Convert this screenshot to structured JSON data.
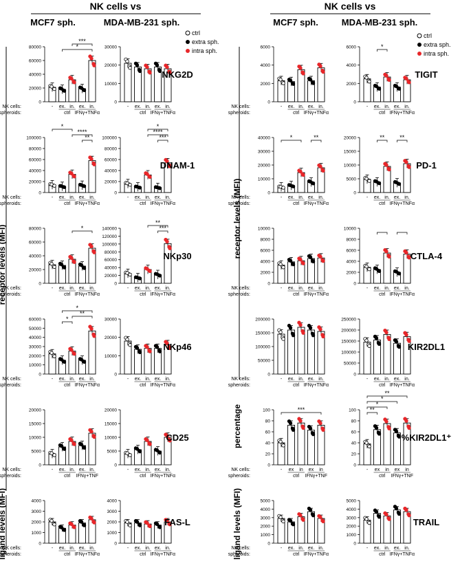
{
  "header": {
    "left_title": "NK cells vs",
    "right_title": "NK cells vs",
    "left_col1": "MCF7 sph.",
    "left_col2": "MDA-MB-231 sph.",
    "right_col1": "MCF7 sph.",
    "right_col2": "MDA-MB-231 sph."
  },
  "legend": {
    "ctrl": "ctrl",
    "extra": "extra sph.",
    "intra": "intra sph."
  },
  "axis_titles": {
    "left_receptor": "receptor levels (MFI)",
    "left_ligand": "ligand levels (MFI)",
    "right_receptor": "receptor levels (MFI)",
    "right_percentage": "percentage",
    "right_ligand": "ligand levels (MFI)"
  },
  "xaxis_labels": {
    "nk_cells": "NK cells:",
    "spheroids": "spheroids:",
    "dash": "-",
    "ex": "ex.",
    "in": "in.",
    "ex_plain": "ex",
    "in_plain": "in",
    "ctrl": "ctrl",
    "ifn": "IFNγ+TNFα",
    "ifn_short": "IFNγ+TNF"
  },
  "colors": {
    "ctrl": "#ffffff",
    "extra": "#000000",
    "intra": "#e8272a"
  },
  "chart_data": [
    {
      "type": "bar",
      "title": "NKG2D",
      "panel": "MCF7",
      "ylim": [
        0,
        80000
      ],
      "ticks": [
        "0",
        "20000",
        "40000",
        "60000",
        "80000"
      ],
      "categories": [
        "-",
        "ex. ctrl",
        "in. ctrl",
        "ex. IFNγ+TNFα",
        "in. IFNγ+TNFα"
      ],
      "values": [
        21000,
        18000,
        32000,
        19000,
        60000
      ],
      "sig": [
        "*",
        "***"
      ]
    },
    {
      "type": "bar",
      "title": "NKG2D",
      "panel": "MDA-MB-231",
      "ylim": [
        0,
        30000
      ],
      "ticks": [
        "0",
        "10000",
        "20000",
        "30000"
      ],
      "categories": [
        "-",
        "ex. ctrl",
        "in. ctrl",
        "ex. IFNγ+TNFα",
        "in. IFNγ+TNFα"
      ],
      "values": [
        21000,
        19000,
        18000,
        19000,
        18000
      ],
      "sig": []
    },
    {
      "type": "bar",
      "title": "DNAM-1",
      "panel": "MCF7",
      "ylim": [
        0,
        100000
      ],
      "ticks": [
        "0",
        "20000",
        "40000",
        "60000",
        "80000",
        "100000"
      ],
      "categories": [
        "-",
        "ex. ctrl",
        "in. ctrl",
        "ex. IFNγ+TNFα",
        "in. IFNγ+TNFα"
      ],
      "values": [
        14000,
        11000,
        33000,
        13000,
        58000
      ],
      "sig": [
        "*",
        "****",
        "**"
      ]
    },
    {
      "type": "bar",
      "title": "DNAM-1",
      "panel": "MDA-MB-231",
      "ylim": [
        0,
        100000
      ],
      "ticks": [
        "0",
        "20000",
        "40000",
        "60000",
        "80000",
        "100000"
      ],
      "categories": [
        "-",
        "ex. ctrl",
        "in. ctrl",
        "ex. IFNγ+TNFα",
        "in. IFNγ+TNFα"
      ],
      "values": [
        16000,
        10000,
        32000,
        9000,
        54000
      ],
      "sig": [
        "*",
        "****",
        "***"
      ]
    },
    {
      "type": "bar",
      "title": "NKp30",
      "panel": "MCF7",
      "ylim": [
        0,
        80000
      ],
      "ticks": [
        "0",
        "20000",
        "40000",
        "60000",
        "80000"
      ],
      "categories": [
        "-",
        "ex. ctrl",
        "in. ctrl",
        "ex. IFNγ+TNFα",
        "in. IFNγ+TNFα"
      ],
      "values": [
        27000,
        26000,
        35000,
        25000,
        51000
      ],
      "sig": [
        "*"
      ]
    },
    {
      "type": "bar",
      "title": "NKp30",
      "panel": "MDA-MB-231",
      "ylim": [
        0,
        140000
      ],
      "ticks": [
        "0",
        "20000",
        "40000",
        "60000",
        "80000",
        "100000",
        "120000",
        "140000"
      ],
      "categories": [
        "-",
        "ex. ctrl",
        "in. ctrl",
        "ex. IFNγ+TNFα",
        "in. IFNγ+TNFα"
      ],
      "values": [
        25000,
        14000,
        35000,
        22000,
        101000
      ],
      "sig": [
        "**",
        "***"
      ]
    },
    {
      "type": "bar",
      "title": "NKp46",
      "panel": "MCF7",
      "ylim": [
        0,
        60000
      ],
      "ticks": [
        "0",
        "10000",
        "20000",
        "30000",
        "40000",
        "50000",
        "60000"
      ],
      "categories": [
        "-",
        "ex. ctrl",
        "in. ctrl",
        "ex. IFNγ+TNFα",
        "in. IFNγ+TNFα"
      ],
      "values": [
        22000,
        15000,
        25000,
        15000,
        47000
      ],
      "sig": [
        "*",
        "*",
        "**"
      ]
    },
    {
      "type": "bar",
      "title": "NKp46",
      "panel": "MDA-MB-231",
      "ylim": [
        0,
        30000
      ],
      "ticks": [
        "0",
        "10000",
        "20000",
        "30000"
      ],
      "categories": [
        "-",
        "ex. ctrl",
        "in. ctrl",
        "ex. IFNγ+TNFα",
        "in. IFNγ+TNFα"
      ],
      "values": [
        18000,
        13500,
        14000,
        14000,
        16000
      ],
      "sig": []
    },
    {
      "type": "bar",
      "title": "CD25",
      "panel": "MCF7",
      "ylim": [
        0,
        20000
      ],
      "ticks": [
        "0",
        "5000",
        "10000",
        "15000",
        "20000"
      ],
      "categories": [
        "-",
        "ex. ctrl",
        "in. ctrl",
        "ex. IFNγ+TNFα",
        "in. IFNγ+TNFα"
      ],
      "values": [
        4000,
        6500,
        8500,
        7000,
        11500
      ],
      "sig": []
    },
    {
      "type": "bar",
      "title": "CD25",
      "panel": "MDA-MB-231",
      "ylim": [
        0,
        20000
      ],
      "ticks": [
        "0",
        "5000",
        "10000",
        "15000",
        "20000"
      ],
      "categories": [
        "-",
        "ex. ctrl",
        "in. ctrl",
        "ex. IFNγ+TNFα",
        "in. IFNγ+TNFα"
      ],
      "values": [
        4000,
        5500,
        8500,
        5000,
        10000
      ],
      "sig": []
    },
    {
      "type": "bar",
      "title": "FAS-L",
      "panel": "MCF7",
      "ylim": [
        0,
        4000
      ],
      "ticks": [
        "0",
        "1000",
        "2000",
        "3000",
        "4000"
      ],
      "categories": [
        "-",
        "ex. ctrl",
        "in. ctrl",
        "ex. IFNγ+TNFα",
        "in. IFNγ+TNFα"
      ],
      "values": [
        2000,
        1400,
        1700,
        1900,
        2200
      ],
      "sig": []
    },
    {
      "type": "bar",
      "title": "FAS-L",
      "panel": "MDA-MB-231",
      "ylim": [
        0,
        4000
      ],
      "ticks": [
        "0",
        "1000",
        "2000",
        "3000",
        "4000"
      ],
      "categories": [
        "-",
        "ex. ctrl",
        "in. ctrl",
        "ex. IFNγ+TNFα",
        "in. IFNγ+TNFα"
      ],
      "values": [
        1900,
        1900,
        1800,
        1700,
        2000
      ],
      "sig": []
    },
    {
      "type": "bar",
      "title": "TIGIT",
      "panel": "MCF7",
      "ylim": [
        0,
        6000
      ],
      "ticks": [
        "0",
        "2000",
        "4000",
        "6000"
      ],
      "categories": [
        "-",
        "ex. ctrl",
        "in. ctrl",
        "ex. IFNγ+TNFα",
        "in. IFNγ+TNFα"
      ],
      "values": [
        2300,
        2200,
        3500,
        2300,
        3700
      ],
      "sig": []
    },
    {
      "type": "bar",
      "title": "TIGIT",
      "panel": "MDA-MB-231",
      "ylim": [
        0,
        6000
      ],
      "ticks": [
        "0",
        "2000",
        "4000",
        "6000"
      ],
      "categories": [
        "-",
        "ex. ctrl",
        "in. ctrl",
        "ex. IFNγ+TNFα",
        "in. IFNγ+TNFα"
      ],
      "values": [
        2500,
        1600,
        2700,
        1600,
        2400
      ],
      "sig": [
        "*"
      ]
    },
    {
      "type": "bar",
      "title": "PD-1",
      "panel": "MCF7",
      "ylim": [
        0,
        40000
      ],
      "ticks": [
        "0",
        "10000",
        "20000",
        "30000",
        "40000"
      ],
      "categories": [
        "-",
        "ex. ctrl",
        "in. ctrl",
        "ex. IFNγ+TNFα",
        "in. IFNγ+TNFα"
      ],
      "values": [
        4000,
        5000,
        14500,
        7500,
        18000
      ],
      "sig": [
        "*",
        "**"
      ]
    },
    {
      "type": "bar",
      "title": "PD-1",
      "panel": "MDA-MB-231",
      "ylim": [
        0,
        20000
      ],
      "ticks": [
        "0",
        "5000",
        "10000",
        "15000",
        "20000"
      ],
      "categories": [
        "-",
        "ex. ctrl",
        "in. ctrl",
        "ex. IFNγ+TNFα",
        "in. IFNγ+TNFα"
      ],
      "values": [
        4800,
        3800,
        9500,
        3500,
        10500
      ],
      "sig": [
        "**",
        "**"
      ]
    },
    {
      "type": "bar",
      "title": "CTLA-4",
      "panel": "MCF7",
      "ylim": [
        0,
        10000
      ],
      "ticks": [
        "0",
        "2000",
        "4000",
        "6000",
        "8000",
        "10000"
      ],
      "categories": [
        "-",
        "ex. ctrl",
        "in. ctrl",
        "ex. IFNγ+TNFα",
        "in. IFNγ+TNFα"
      ],
      "values": [
        3300,
        3900,
        4100,
        4500,
        4600
      ],
      "sig": []
    },
    {
      "type": "bar",
      "title": "CTLA-4",
      "panel": "MDA-MB-231",
      "ylim": [
        0,
        10000
      ],
      "ticks": [
        "0",
        "2000",
        "4000",
        "6000",
        "8000",
        "10000"
      ],
      "categories": [
        "-",
        "ex. ctrl",
        "in. ctrl",
        "ex. IFNγ+TNFα",
        "in. IFNγ+TNFα"
      ],
      "values": [
        2900,
        2500,
        5500,
        2000,
        5300
      ],
      "sig": []
    },
    {
      "type": "bar",
      "title": "KIR2DL1",
      "panel": "MCF7",
      "ylim": [
        0,
        200000
      ],
      "ticks": [
        "0",
        "50000",
        "100000",
        "150000",
        "200000"
      ],
      "categories": [
        "-",
        "ex. ctrl",
        "in. ctrl",
        "ex. IFNγ+TNFα",
        "in. IFNγ+TNFα"
      ],
      "values": [
        145000,
        160000,
        170000,
        160000,
        155000
      ],
      "sig": []
    },
    {
      "type": "bar",
      "title": "KIR2DL1",
      "panel": "MDA-MB-231",
      "ylim": [
        0,
        250000
      ],
      "ticks": [
        "0",
        "50000",
        "100000",
        "150000",
        "200000",
        "250000"
      ],
      "categories": [
        "-",
        "ex. ctrl",
        "in. ctrl",
        "ex. IFNγ+TNFα",
        "in. IFNγ+TNFα"
      ],
      "values": [
        145000,
        155000,
        180000,
        140000,
        170000
      ],
      "sig": []
    },
    {
      "type": "bar",
      "title": "%KIR2DL1⁺",
      "panel": "MCF7",
      "ylim": [
        0,
        100
      ],
      "ticks": [
        "0",
        "20",
        "40",
        "60",
        "80",
        "100"
      ],
      "categories": [
        "-",
        "ex ctrl",
        "in ctrl",
        "ex IFNγ+TNFα",
        "in IFNγ+TNFα"
      ],
      "values": [
        40,
        72,
        76,
        63,
        72
      ],
      "sig": [
        "***"
      ]
    },
    {
      "type": "bar",
      "title": "%KIR2DL1⁺",
      "panel": "MDA-MB-231",
      "ylim": [
        0,
        100
      ],
      "ticks": [
        "0",
        "20",
        "40",
        "60",
        "80",
        "100"
      ],
      "categories": [
        "-",
        "ex ctrl",
        "in ctrl",
        "ex IFNγ+TNFα",
        "in IFNγ+TNFα"
      ],
      "values": [
        38,
        64,
        75,
        58,
        76
      ],
      "sig": [
        "**",
        "*",
        "*",
        "**"
      ]
    },
    {
      "type": "bar",
      "title": "TRAIL",
      "panel": "MCF7",
      "ylim": [
        0,
        5000
      ],
      "ticks": [
        "0",
        "1000",
        "2000",
        "3000",
        "4000",
        "5000"
      ],
      "categories": [
        "-",
        "ex. ctrl",
        "in. ctrl",
        "ex. IFNγ+TNFα",
        "in. IFNγ+TNFα"
      ],
      "values": [
        2900,
        2500,
        3100,
        3700,
        2900
      ],
      "sig": []
    },
    {
      "type": "bar",
      "title": "TRAIL",
      "panel": "MDA-MB-231",
      "ylim": [
        0,
        5000
      ],
      "ticks": [
        "0",
        "1000",
        "2000",
        "3000",
        "4000",
        "5000"
      ],
      "categories": [
        "-",
        "ex. ctrl",
        "in. ctrl",
        "ex. IFNγ+TNFα",
        "in. IFNγ+TNFα"
      ],
      "values": [
        2700,
        3500,
        3200,
        3900,
        3700
      ],
      "sig": []
    }
  ]
}
